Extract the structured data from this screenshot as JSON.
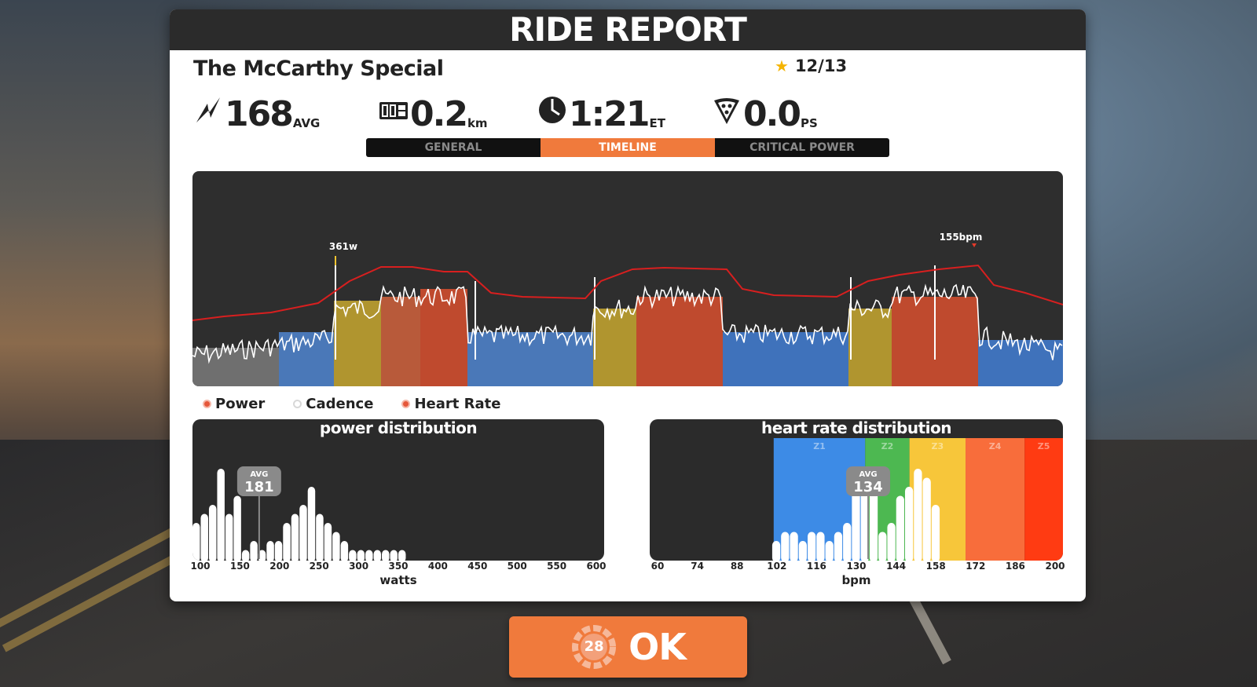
{
  "header": {
    "title": "RIDE REPORT"
  },
  "ride": {
    "name": "The McCarthy Special",
    "rating": "12/13"
  },
  "stats": [
    {
      "icon": "power-bolt-icon",
      "value": "168",
      "unit": "AVG"
    },
    {
      "icon": "odometer-icon",
      "value": "0.2",
      "unit": "km"
    },
    {
      "icon": "clock-icon",
      "value": "1:21",
      "unit": "ET"
    },
    {
      "icon": "pizza-icon",
      "value": "0.0",
      "unit": "PS"
    }
  ],
  "tabs": [
    {
      "label": "GENERAL",
      "active": false
    },
    {
      "label": "TIMELINE",
      "active": true
    },
    {
      "label": "CRITICAL POWER",
      "active": false
    }
  ],
  "timeline": {
    "peak_power_label": "361w",
    "peak_hr_label": "155bpm"
  },
  "legend": [
    {
      "label": "Power",
      "on": true
    },
    {
      "label": "Cadence",
      "on": false
    },
    {
      "label": "Heart Rate",
      "on": true
    }
  ],
  "power_distribution": {
    "title": "power distribution",
    "avg_label": "AVG",
    "avg_value": "181",
    "x_ticks": [
      "100",
      "150",
      "200",
      "250",
      "300",
      "350",
      "400",
      "450",
      "500",
      "550",
      "600"
    ],
    "x_title": "watts"
  },
  "hr_distribution": {
    "title": "heart rate distribution",
    "avg_label": "AVG",
    "avg_value": "134",
    "zones": [
      "Z1",
      "Z2",
      "Z3",
      "Z4",
      "Z5"
    ],
    "x_ticks": [
      "60",
      "74",
      "88",
      "102",
      "116",
      "130",
      "144",
      "158",
      "172",
      "186",
      "200"
    ],
    "x_title": "bpm"
  },
  "ok_button": {
    "label": "OK",
    "countdown": "28"
  },
  "colors": {
    "accent": "#f07a3c",
    "zone1": "#3d8be6",
    "zone2": "#4db851",
    "zone3": "#f7c63a",
    "zone4": "#f86d3b",
    "zone5": "#ff3b12",
    "hr_line": "#d81f1f"
  },
  "chart_data": [
    {
      "type": "bar",
      "name": "power distribution",
      "title": "power distribution",
      "xlabel": "watts",
      "x": [
        105,
        115,
        125,
        135,
        145,
        155,
        165,
        175,
        185,
        195,
        205,
        215,
        225,
        235,
        245,
        255,
        265,
        275,
        285,
        295,
        305,
        315,
        325,
        335,
        345,
        355
      ],
      "values": [
        4,
        5,
        6,
        10,
        5,
        7,
        1,
        2,
        1,
        2,
        2,
        4,
        5,
        6,
        8,
        5,
        4,
        3,
        2,
        1,
        1,
        1,
        1,
        1,
        1,
        1
      ],
      "xlim": [
        100,
        600
      ],
      "avg": 181
    },
    {
      "type": "bar",
      "name": "heart rate distribution",
      "title": "heart rate distribution",
      "xlabel": "bpm",
      "x": [
        103,
        106,
        109,
        112,
        115,
        118,
        121,
        124,
        127,
        130,
        133,
        136,
        139,
        142,
        145,
        148,
        151,
        154,
        157
      ],
      "values": [
        2,
        3,
        3,
        2,
        3,
        3,
        2,
        3,
        4,
        8,
        9,
        10,
        3,
        4,
        7,
        8,
        10,
        9,
        6
      ],
      "xlim": [
        60,
        200
      ],
      "avg": 134,
      "zones": [
        {
          "name": "Z1",
          "from": 102,
          "to": 133
        },
        {
          "name": "Z2",
          "from": 133,
          "to": 148
        },
        {
          "name": "Z3",
          "from": 148,
          "to": 167
        },
        {
          "name": "Z4",
          "from": 167,
          "to": 187
        },
        {
          "name": "Z5",
          "from": 187,
          "to": 200
        }
      ]
    }
  ]
}
